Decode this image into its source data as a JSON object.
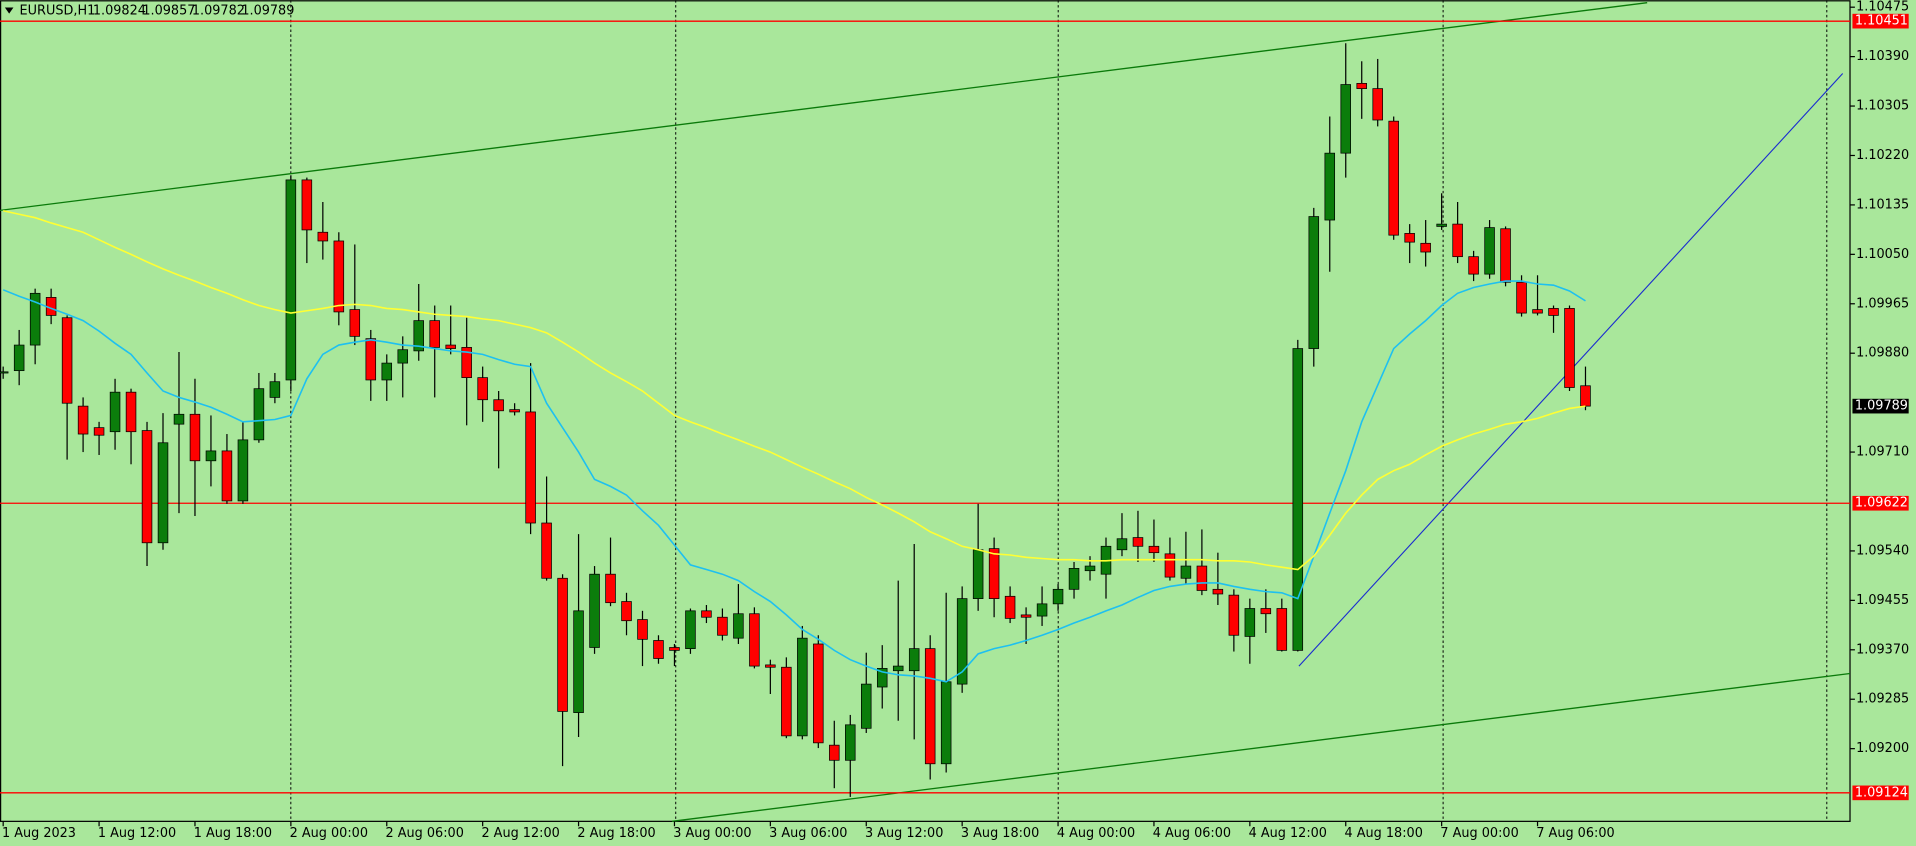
{
  "chart_data": {
    "type": "candlestick",
    "title": "EURUSD,H1",
    "categories": [
      "1 Aug 2023",
      null,
      null,
      null,
      null,
      null,
      "1 Aug 12:00",
      null,
      null,
      null,
      null,
      null,
      "1 Aug 18:00",
      null,
      null,
      null,
      null,
      null,
      "2 Aug 00:00",
      null,
      null,
      null,
      null,
      null,
      "2 Aug 06:00",
      null,
      null,
      null,
      null,
      null,
      "2 Aug 12:00",
      null,
      null,
      null,
      null,
      null,
      "2 Aug 18:00",
      null,
      null,
      null,
      null,
      null,
      "3 Aug 00:00",
      null,
      null,
      null,
      null,
      null,
      "3 Aug 06:00",
      null,
      null,
      null,
      null,
      null,
      "3 Aug 12:00",
      null,
      null,
      null,
      null,
      null,
      "3 Aug 18:00",
      null,
      null,
      null,
      null,
      null,
      "4 Aug 00:00",
      null,
      null,
      null,
      null,
      null,
      "4 Aug 06:00",
      null,
      null,
      null,
      null,
      null,
      "4 Aug 12:00",
      null,
      null,
      null,
      null,
      null,
      "4 Aug 18:00",
      null,
      null,
      null,
      null,
      null,
      "7 Aug 00:00",
      null,
      null,
      null,
      null,
      null,
      "7 Aug 06:00",
      null,
      null,
      null
    ],
    "open": [
      1.09846,
      1.0985,
      1.09894,
      1.09976,
      1.09941,
      1.09789,
      1.09752,
      1.09745,
      1.09813,
      1.09747,
      1.09554,
      1.09758,
      1.09775,
      1.09695,
      1.09712,
      1.09626,
      1.09731,
      1.09804,
      1.09834,
      1.10178,
      1.10088,
      1.10073,
      1.09955,
      1.09905,
      1.09834,
      1.09863,
      1.09884,
      1.09936,
      1.09894,
      1.0989,
      1.09838,
      1.098,
      1.09783,
      1.09779,
      1.09588,
      1.09493,
      1.09262,
      1.09374,
      1.095,
      1.09453,
      1.09422,
      1.09386,
      1.09374,
      1.09372,
      1.09437,
      1.09426,
      1.0939,
      1.09432,
      1.09344,
      1.0934,
      1.09222,
      1.0938,
      1.09206,
      1.0918,
      1.09235,
      1.09306,
      1.09334,
      1.09334,
      1.09372,
      1.09174,
      1.09311,
      1.09458,
      1.09544,
      1.09462,
      1.0943,
      1.09428,
      1.09449,
      1.09474,
      1.09506,
      1.095,
      1.09542,
      1.09563,
      1.09548,
      1.09535,
      1.09493,
      1.09514,
      1.09474,
      1.09464,
      1.09393,
      1.09441,
      1.09441,
      1.09369,
      1.09888,
      1.10109,
      1.10224,
      1.10344,
      1.10335,
      1.10279,
      1.10086,
      1.10069,
      1.10098,
      1.10102,
      1.10046,
      1.10016,
      1.10094,
      1.10002,
      1.09955,
      1.09957,
      1.09957,
      1.09824
    ],
    "high": [
      1.09857,
      1.0992,
      1.09991,
      1.09991,
      1.09945,
      1.09804,
      1.09762,
      1.09836,
      1.09819,
      1.09762,
      1.09777,
      1.09882,
      1.09836,
      1.09773,
      1.09741,
      1.09762,
      1.09846,
      1.09846,
      1.10186,
      1.10182,
      1.1014,
      1.10088,
      1.10067,
      1.0992,
      1.09878,
      1.09909,
      1.09999,
      1.09962,
      1.09962,
      1.09941,
      1.09857,
      1.09815,
      1.09794,
      1.09863,
      1.09668,
      1.095,
      1.09569,
      1.09514,
      1.09563,
      1.09468,
      1.09437,
      1.09395,
      1.0938,
      1.09441,
      1.09447,
      1.09441,
      1.09483,
      1.09443,
      1.09353,
      1.09357,
      1.09411,
      1.09395,
      1.09248,
      1.09258,
      1.09365,
      1.09378,
      1.09489,
      1.09552,
      1.09395,
      1.09468,
      1.09479,
      1.09621,
      1.09563,
      1.09479,
      1.09443,
      1.09479,
      1.09483,
      1.09521,
      1.09531,
      1.09563,
      1.09605,
      1.09609,
      1.09594,
      1.09563,
      1.09573,
      1.09577,
      1.09537,
      1.09474,
      1.09458,
      1.09474,
      1.09458,
      1.09903,
      1.1013,
      1.10287,
      1.10413,
      1.10382,
      1.10386,
      1.10287,
      1.10102,
      1.10109,
      1.10155,
      1.1014,
      1.10056,
      1.10109,
      1.10098,
      1.10014,
      1.10014,
      1.09962,
      1.09962,
      1.09857
    ],
    "low": [
      1.09836,
      1.09825,
      1.09861,
      1.0993,
      1.09697,
      1.0971,
      1.09705,
      1.09714,
      1.09689,
      1.09514,
      1.09542,
      1.09605,
      1.096,
      1.09651,
      1.09621,
      1.09621,
      1.09726,
      1.09794,
      1.09815,
      1.10035,
      1.10041,
      1.09928,
      1.09894,
      1.09798,
      1.09798,
      1.09804,
      1.09867,
      1.09804,
      1.09878,
      1.09756,
      1.09762,
      1.09682,
      1.09773,
      1.09569,
      1.09489,
      1.0917,
      1.0922,
      1.09363,
      1.09445,
      1.09395,
      1.09342,
      1.09346,
      1.09342,
      1.09363,
      1.09416,
      1.09386,
      1.0938,
      1.09338,
      1.09294,
      1.09218,
      1.09216,
      1.09201,
      1.09132,
      1.09117,
      1.09227,
      1.09269,
      1.09248,
      1.09216,
      1.09147,
      1.09159,
      1.09296,
      1.09437,
      1.09426,
      1.09416,
      1.0938,
      1.09411,
      1.09437,
      1.09458,
      1.09489,
      1.09458,
      1.09531,
      1.09521,
      1.09521,
      1.09489,
      1.09483,
      1.09464,
      1.09447,
      1.09367,
      1.09346,
      1.09399,
      1.09367,
      1.09367,
      1.09857,
      1.1002,
      1.10182,
      1.10283,
      1.1027,
      1.10075,
      1.10035,
      1.10029,
      1.10092,
      1.10035,
      1.10004,
      1.10008,
      1.09995,
      1.09943,
      1.09945,
      1.09915,
      1.09815,
      1.09782
    ],
    "close": [
      1.09848,
      1.09894,
      1.09983,
      1.09945,
      1.09794,
      1.09741,
      1.09739,
      1.09813,
      1.09745,
      1.09554,
      1.09726,
      1.09775,
      1.09695,
      1.09712,
      1.09626,
      1.09731,
      1.09819,
      1.09831,
      1.10178,
      1.10092,
      1.10073,
      1.09951,
      1.09909,
      1.09834,
      1.09863,
      1.09886,
      1.09936,
      1.0989,
      1.09888,
      1.09838,
      1.098,
      1.09781,
      1.09779,
      1.09588,
      1.09493,
      1.09264,
      1.09437,
      1.095,
      1.09451,
      1.0942,
      1.09388,
      1.09355,
      1.09369,
      1.09437,
      1.09426,
      1.09395,
      1.09432,
      1.09342,
      1.0934,
      1.09222,
      1.0939,
      1.0921,
      1.0918,
      1.09241,
      1.09311,
      1.09338,
      1.09342,
      1.09372,
      1.09174,
      1.09315,
      1.09458,
      1.09542,
      1.09458,
      1.09424,
      1.09426,
      1.09449,
      1.09474,
      1.0951,
      1.09514,
      1.09548,
      1.09561,
      1.09548,
      1.09537,
      1.09495,
      1.09514,
      1.09472,
      1.09466,
      1.09395,
      1.09441,
      1.09432,
      1.09369,
      1.09888,
      1.10115,
      1.10224,
      1.10342,
      1.10335,
      1.10281,
      1.10083,
      1.10071,
      1.10054,
      1.10102,
      1.10046,
      1.10016,
      1.10096,
      1.10002,
      1.09949,
      1.09949,
      1.09945,
      1.09821,
      1.09789
    ],
    "up_color": "#0b7d0b",
    "down_color": "#ff0000",
    "lines": [
      {
        "color": "#1ec0f0",
        "values": [
          1.09989,
          1.09978,
          1.09968,
          1.09957,
          1.09947,
          1.09936,
          1.09918,
          1.09897,
          1.09878,
          1.09846,
          1.09815,
          1.09804,
          1.09796,
          1.09787,
          1.09775,
          1.09762,
          1.09764,
          1.09766,
          1.09773,
          1.09836,
          1.09878,
          1.09894,
          1.09899,
          1.09903,
          1.09899,
          1.09894,
          1.09892,
          1.09888,
          1.09884,
          1.09882,
          1.09878,
          1.09869,
          1.09861,
          1.09857,
          1.09794,
          1.09752,
          1.0971,
          1.09663,
          1.09651,
          1.09636,
          1.09609,
          1.09584,
          1.0955,
          1.09516,
          1.09508,
          1.095,
          1.09489,
          1.0947,
          1.09453,
          1.0943,
          1.09405,
          1.09388,
          1.09369,
          1.09353,
          1.09342,
          1.09332,
          1.09327,
          1.09325,
          1.09321,
          1.09315,
          1.09332,
          1.09363,
          1.09372,
          1.09378,
          1.09386,
          1.09395,
          1.09405,
          1.09416,
          1.09426,
          1.09437,
          1.09447,
          1.0946,
          1.09472,
          1.09479,
          1.09483,
          1.09485,
          1.09485,
          1.09479,
          1.09474,
          1.0947,
          1.09468,
          1.09458,
          1.09531,
          1.09605,
          1.09678,
          1.09762,
          1.09825,
          1.09888,
          1.09913,
          1.09936,
          1.09962,
          1.09983,
          1.09993,
          1.09999,
          1.10004,
          1.10004,
          1.09999,
          1.09997,
          1.09987,
          1.0997
        ]
      },
      {
        "color": "#ffff33",
        "values": [
          1.10125,
          1.10119,
          1.10113,
          1.10104,
          1.10096,
          1.10088,
          1.10075,
          1.10062,
          1.1005,
          1.10037,
          1.10025,
          1.10014,
          1.10004,
          1.09993,
          1.09983,
          1.09972,
          1.09962,
          1.09955,
          1.09949,
          1.09953,
          1.09957,
          1.09962,
          1.09964,
          1.09962,
          1.09957,
          1.09955,
          1.09951,
          1.09947,
          1.09945,
          1.09943,
          1.09939,
          1.09936,
          1.0993,
          1.09924,
          1.09915,
          1.09899,
          1.09882,
          1.09863,
          1.09846,
          1.09831,
          1.09815,
          1.09794,
          1.09773,
          1.09762,
          1.09752,
          1.09741,
          1.09731,
          1.0972,
          1.0971,
          1.09697,
          1.09684,
          1.09672,
          1.09659,
          1.09647,
          1.09632,
          1.09619,
          1.09605,
          1.0959,
          1.09573,
          1.09561,
          1.09548,
          1.09542,
          1.09535,
          1.09533,
          1.09529,
          1.09527,
          1.09525,
          1.09525,
          1.09523,
          1.09523,
          1.09525,
          1.09525,
          1.09525,
          1.09525,
          1.09525,
          1.09525,
          1.09523,
          1.09523,
          1.09521,
          1.09516,
          1.09512,
          1.09508,
          1.09531,
          1.09567,
          1.09605,
          1.09636,
          1.09663,
          1.09678,
          1.09689,
          1.09705,
          1.0972,
          1.09731,
          1.09741,
          1.09749,
          1.09758,
          1.09762,
          1.09768,
          1.09777,
          1.09785,
          1.09789
        ]
      }
    ],
    "levels": [
      {
        "value": 1.10451,
        "color": "#ff0000"
      },
      {
        "value": 1.09622,
        "color": "#ff0000"
      },
      {
        "value": 1.09124,
        "color": "#ff0000"
      }
    ],
    "ylim": [
      1.09075,
      1.10487
    ],
    "yticks": [
      1.10475,
      {
        "value": 1.1039,
        "label": "1.10390"
      },
      1.10305,
      {
        "value": 1.1022,
        "label": "1.10220"
      },
      1.10135,
      {
        "value": 1.1005,
        "label": "1.10050"
      },
      1.09965,
      {
        "value": 1.0988,
        "label": "1.09880"
      },
      {
        "value": 1.0971,
        "label": "1.09710"
      },
      {
        "value": 1.0954,
        "label": "1.09540"
      },
      1.09455,
      {
        "value": 1.0937,
        "label": "1.09370"
      },
      1.09285,
      {
        "value": 1.092,
        "label": "1.09200"
      }
    ]
  }
}
